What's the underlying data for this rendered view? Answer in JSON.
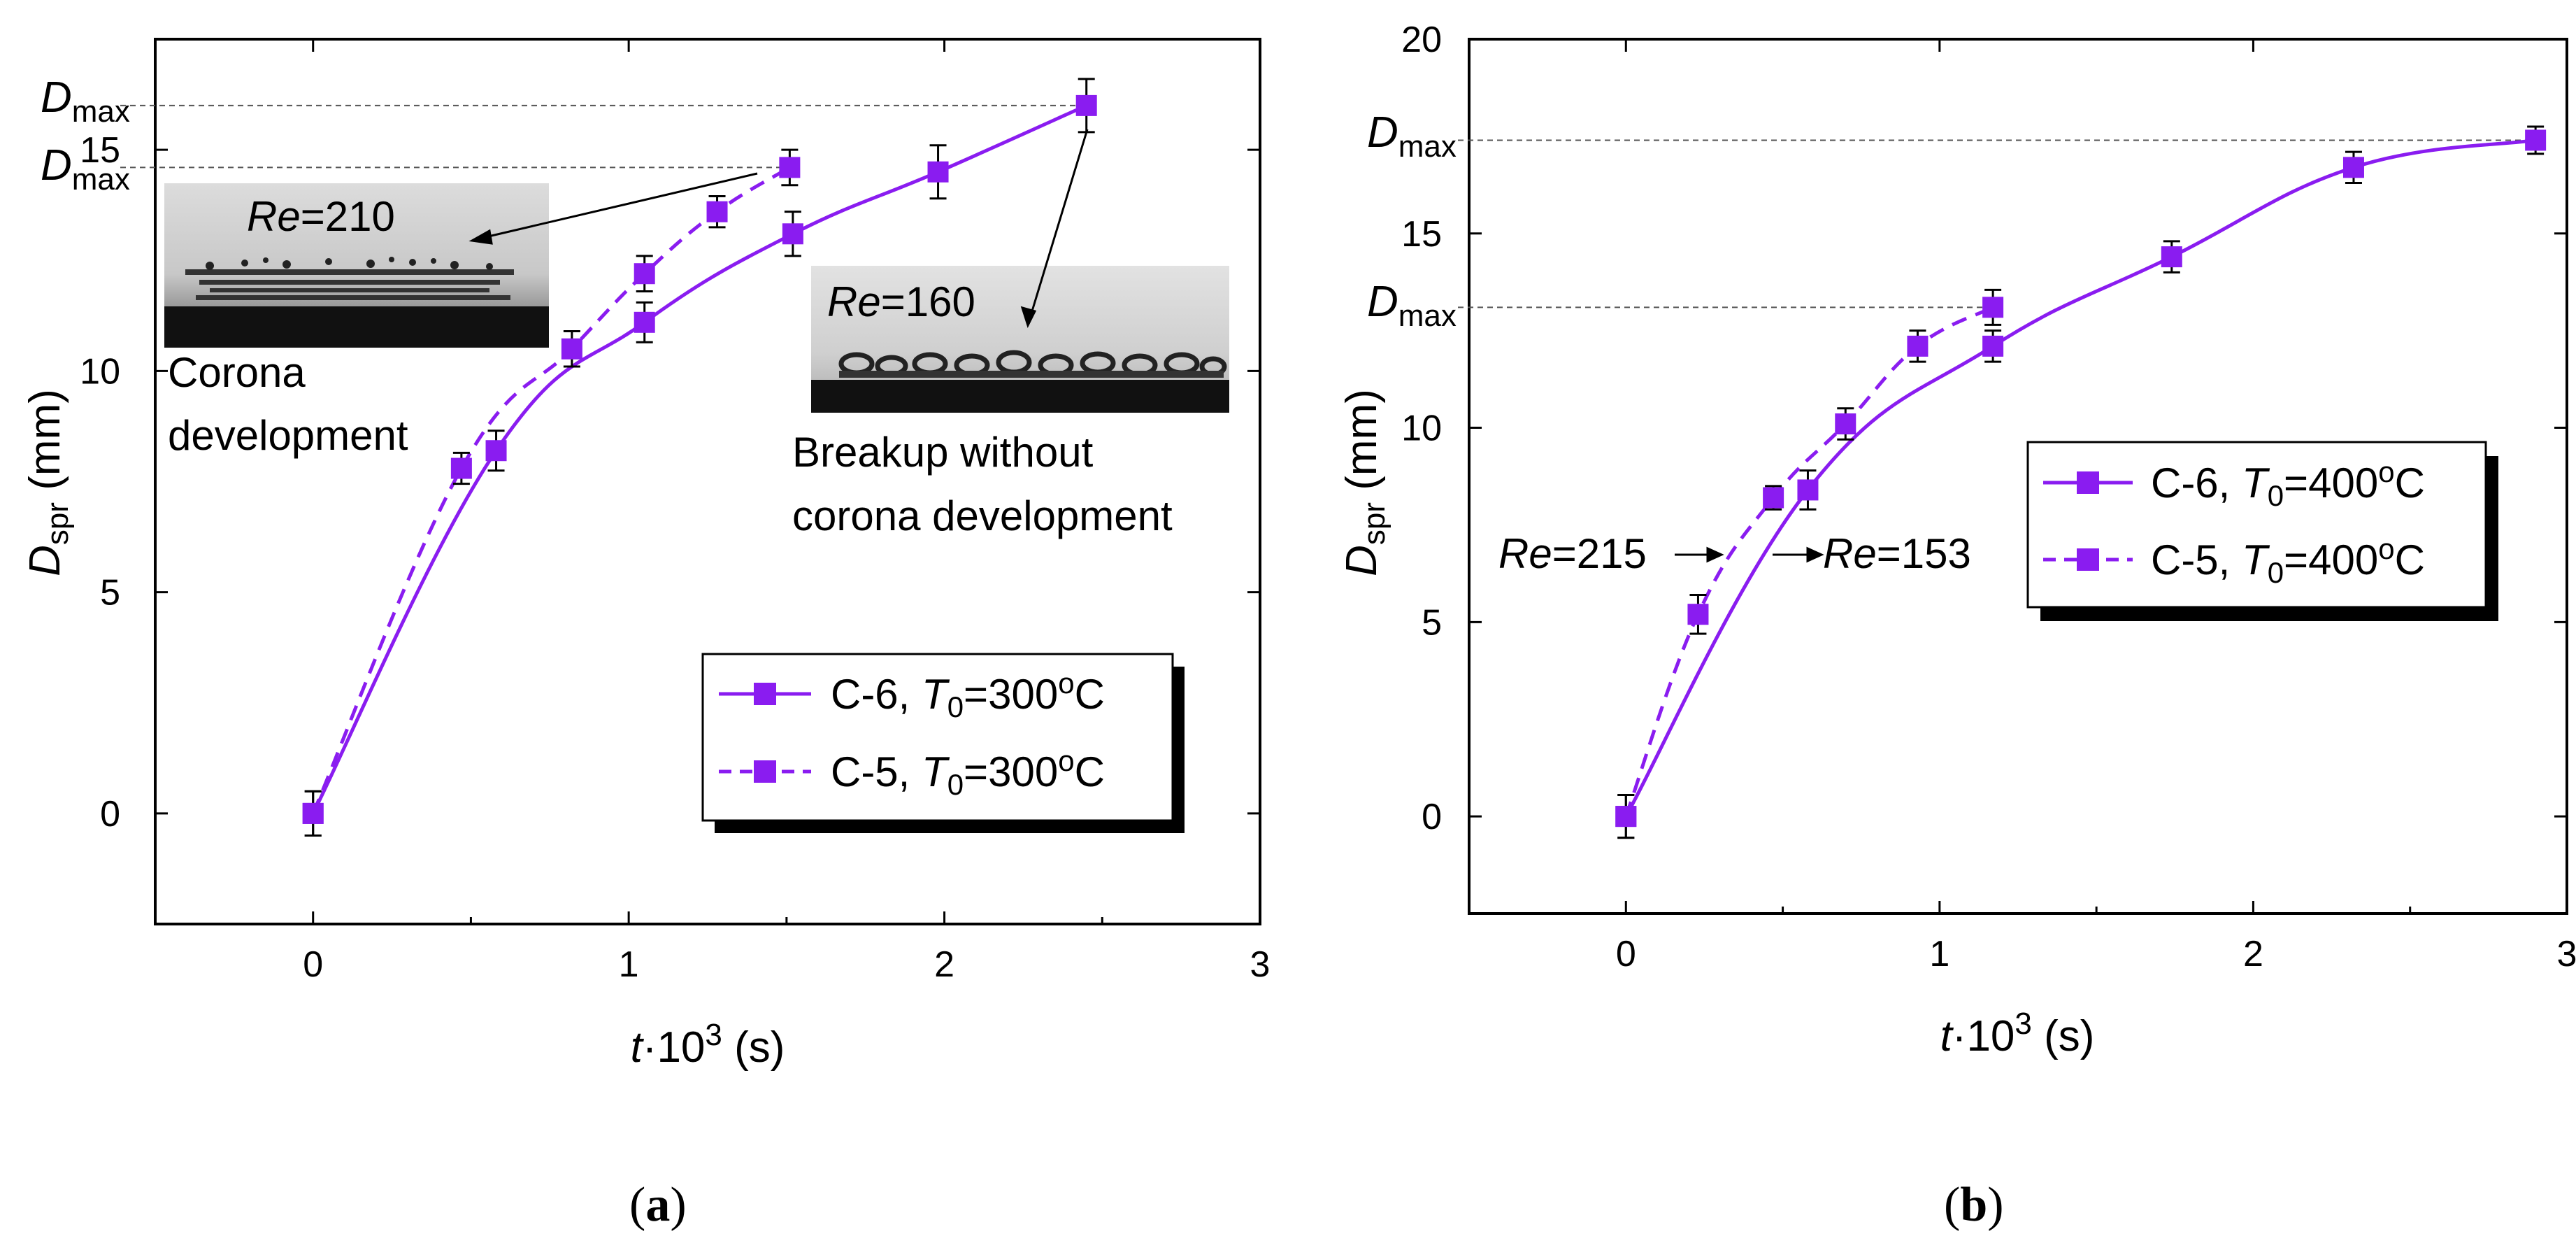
{
  "colors": {
    "series": "#8a1cf0",
    "axis": "#000000",
    "inset_light": "#d6d6d6",
    "inset_dark": "#111111"
  },
  "panels": {
    "a": {
      "label": "a"
    },
    "b": {
      "label": "b"
    }
  },
  "chart_data": [
    {
      "type": "line",
      "panel": "a",
      "xlabel_var": "t",
      "xlabel_rest": "·10",
      "xlabel_sup": "3",
      "xlabel_unit": " (s)",
      "ylabel_main": "D",
      "ylabel_sub": "spr",
      "ylabel_unit": " (mm)",
      "xlim": [
        -0.5,
        3
      ],
      "ylim": [
        -2.5,
        17.5
      ],
      "xticks": [
        0,
        1,
        2,
        3
      ],
      "yticks": [
        0,
        5,
        10,
        15
      ],
      "xtick_labels": [
        "0",
        "1",
        "2",
        "3"
      ],
      "ytick_labels": [
        "0",
        "5",
        "10",
        "15"
      ],
      "series": [
        {
          "name": "C-6",
          "legend_text": "C-6, ",
          "legend_var": "T",
          "legend_sub": "0",
          "legend_rest": "=300",
          "legend_sup": "o",
          "legend_unit": "C",
          "dashed": false,
          "x": [
            0,
            0.58,
            1.05,
            1.52,
            1.98,
            2.45
          ],
          "y": [
            0,
            8.2,
            11.1,
            13.1,
            14.5,
            16.0
          ],
          "err": [
            0.5,
            0.45,
            0.45,
            0.5,
            0.6,
            0.6
          ]
        },
        {
          "name": "C-5",
          "legend_text": "C-5, ",
          "legend_var": "T",
          "legend_sub": "0",
          "legend_rest": "=300",
          "legend_sup": "o",
          "legend_unit": "C",
          "dashed": true,
          "x": [
            0,
            0.47,
            0.82,
            1.05,
            1.28,
            1.51
          ],
          "y": [
            0,
            7.8,
            10.5,
            12.2,
            13.6,
            14.6
          ],
          "err": [
            0.5,
            0.35,
            0.4,
            0.4,
            0.35,
            0.4
          ]
        }
      ],
      "dmax_lines": [
        16.0,
        14.6
      ],
      "dmax_label_main": "D",
      "dmax_label_sub": "max",
      "annotations": {
        "re1_var": "Re",
        "re1_val": "=210",
        "re2_var": "Re",
        "re2_val": "=160",
        "corona_line1": "Corona",
        "corona_line2": "development",
        "breakup_line1": "Breakup without",
        "breakup_line2": "corona development"
      }
    },
    {
      "type": "line",
      "panel": "b",
      "xlabel_var": "t",
      "xlabel_rest": "·10",
      "xlabel_sup": "3",
      "xlabel_unit": " (s)",
      "ylabel_main": "D",
      "ylabel_sub": "spr",
      "ylabel_unit": " (mm)",
      "xlim": [
        -0.5,
        3
      ],
      "ylim": [
        -2.5,
        20
      ],
      "xticks": [
        0,
        1,
        2,
        3
      ],
      "yticks": [
        0,
        5,
        10,
        15,
        20
      ],
      "xtick_labels": [
        "0",
        "1",
        "2",
        "3"
      ],
      "ytick_labels": [
        "0",
        "5",
        "10",
        "15",
        "20"
      ],
      "series": [
        {
          "name": "C-6",
          "legend_text": "C-6, ",
          "legend_var": "T",
          "legend_sub": "0",
          "legend_rest": "=400",
          "legend_sup": "o",
          "legend_unit": "C",
          "dashed": false,
          "x": [
            0,
            0.58,
            1.17,
            1.74,
            2.32,
            2.9
          ],
          "y": [
            0,
            8.4,
            12.1,
            14.4,
            16.7,
            17.4
          ],
          "err": [
            0.55,
            0.5,
            0.4,
            0.4,
            0.4,
            0.35
          ]
        },
        {
          "name": "C-5",
          "legend_text": "C-5, ",
          "legend_var": "T",
          "legend_sub": "0",
          "legend_rest": "=400",
          "legend_sup": "o",
          "legend_unit": "C",
          "dashed": true,
          "x": [
            0,
            0.23,
            0.47,
            0.7,
            0.93,
            1.17
          ],
          "y": [
            0,
            5.2,
            8.2,
            10.1,
            12.1,
            13.1
          ],
          "err": [
            0.55,
            0.5,
            0.3,
            0.4,
            0.4,
            0.45
          ]
        }
      ],
      "dmax_lines": [
        17.4,
        13.1
      ],
      "dmax_label_main": "D",
      "dmax_label_sub": "max",
      "annotations": {
        "re1_var": "Re",
        "re1_val": "=215",
        "re2_var": "Re",
        "re2_val": "=153"
      }
    }
  ]
}
